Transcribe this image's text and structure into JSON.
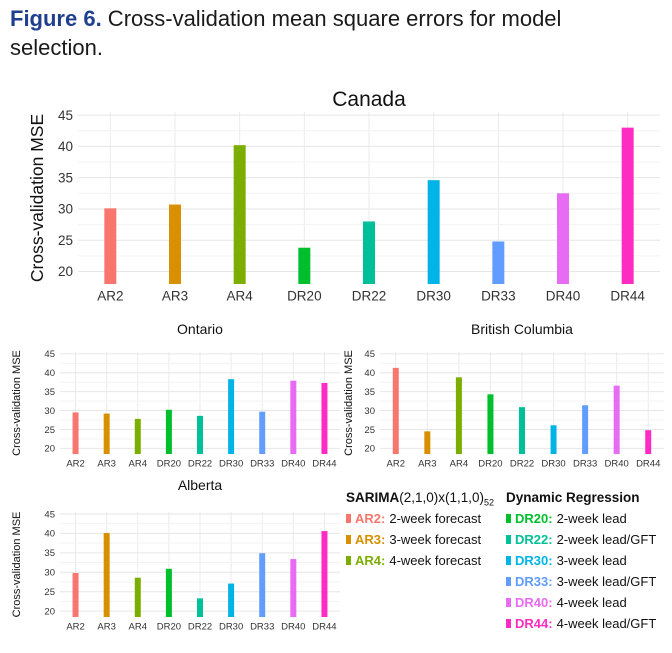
{
  "caption": {
    "label": "Figure 6.",
    "text": " Cross-validation mean square errors for model selection."
  },
  "colors": {
    "AR2": "#f8766d",
    "AR3": "#d89000",
    "AR4": "#7cae00",
    "DR20": "#00bf2d",
    "DR22": "#00c09a",
    "DR30": "#00b4e7",
    "DR33": "#619cff",
    "DR40": "#e76bf3",
    "DR44": "#ff2cc4"
  },
  "chart_data": [
    {
      "type": "bar",
      "title": "Canada",
      "ylabel": "Cross-validation MSE",
      "xlabel": "",
      "categories": [
        "AR2",
        "AR3",
        "AR4",
        "DR20",
        "DR22",
        "DR30",
        "DR33",
        "DR40",
        "DR44"
      ],
      "values": [
        30.1,
        30.7,
        40.2,
        23.8,
        28.0,
        34.6,
        24.8,
        32.5,
        43.0
      ],
      "yticks": [
        20,
        25,
        30,
        35,
        40,
        45
      ],
      "ylim": [
        18,
        45.5
      ],
      "grid": true
    },
    {
      "type": "bar",
      "title": "Ontario",
      "ylabel": "Cross-validation MSE",
      "xlabel": "",
      "categories": [
        "AR2",
        "AR3",
        "AR4",
        "DR20",
        "DR22",
        "DR30",
        "DR33",
        "DR40",
        "DR44"
      ],
      "values": [
        29.5,
        29.2,
        27.8,
        30.2,
        28.6,
        38.3,
        29.7,
        37.9,
        37.3
      ],
      "yticks": [
        20,
        25,
        30,
        35,
        40,
        45
      ],
      "ylim": [
        18.5,
        45.5
      ],
      "grid": true
    },
    {
      "type": "bar",
      "title": "British Columbia",
      "ylabel": "Cross-validation MSE",
      "xlabel": "",
      "categories": [
        "AR2",
        "AR3",
        "AR4",
        "DR20",
        "DR22",
        "DR30",
        "DR33",
        "DR40",
        "DR44"
      ],
      "values": [
        41.3,
        24.5,
        38.8,
        34.3,
        30.9,
        26.1,
        31.4,
        36.6,
        24.8
      ],
      "yticks": [
        20,
        25,
        30,
        35,
        40,
        45
      ],
      "ylim": [
        18.5,
        45.5
      ],
      "grid": true
    },
    {
      "type": "bar",
      "title": "Alberta",
      "ylabel": "Cross-validation MSE",
      "xlabel": "",
      "categories": [
        "AR2",
        "AR3",
        "AR4",
        "DR20",
        "DR22",
        "DR30",
        "DR33",
        "DR40",
        "DR44"
      ],
      "values": [
        29.8,
        40.1,
        28.6,
        30.9,
        23.3,
        27.1,
        34.9,
        33.4,
        40.6
      ],
      "yticks": [
        20,
        25,
        30,
        35,
        40,
        45
      ],
      "ylim": [
        18.5,
        45.5
      ],
      "grid": true
    }
  ],
  "legend": {
    "sarima_title": "SARIMA",
    "sarima_spec": "(2,1,0)x(1,1,0)",
    "sarima_sub": "52",
    "dr_title": "Dynamic Regression",
    "sarima_items": [
      {
        "key": "AR2:",
        "color": "#f8766d",
        "desc": "2-week forecast"
      },
      {
        "key": "AR3:",
        "color": "#d89000",
        "desc": "3-week forecast"
      },
      {
        "key": "AR4:",
        "color": "#7cae00",
        "desc": "4-week forecast"
      }
    ],
    "dr_items": [
      {
        "key": "DR20:",
        "color": "#00bf2d",
        "desc": "2-week lead"
      },
      {
        "key": "DR22:",
        "color": "#00c09a",
        "desc": "2-week lead/GFT"
      },
      {
        "key": "DR30:",
        "color": "#00b4e7",
        "desc": "3-week lead"
      },
      {
        "key": "DR33:",
        "color": "#619cff",
        "desc": "3-week lead/GFT"
      },
      {
        "key": "DR40:",
        "color": "#e76bf3",
        "desc": "4-week lead"
      },
      {
        "key": "DR44:",
        "color": "#ff2cc4",
        "desc": "4-week lead/GFT"
      }
    ]
  }
}
